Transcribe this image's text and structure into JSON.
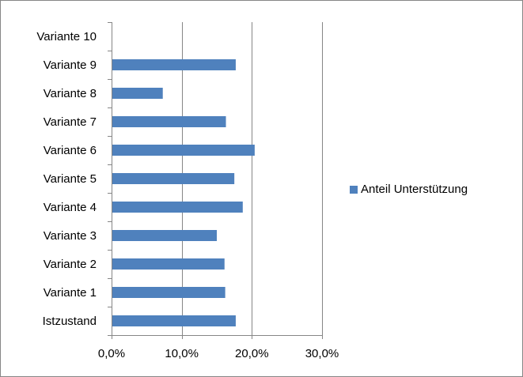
{
  "chart_data": {
    "type": "bar",
    "orientation": "horizontal",
    "categories": [
      "Istzustand",
      "Variante 1",
      "Variante 2",
      "Variante 3",
      "Variante 4",
      "Variante 5",
      "Variante 6",
      "Variante 7",
      "Variante 8",
      "Variante 9",
      "Variante 10"
    ],
    "series": [
      {
        "name": "Anteil Unterstützung",
        "values": [
          17.7,
          16.2,
          16.1,
          15.0,
          18.7,
          17.5,
          20.4,
          16.3,
          7.3,
          17.7,
          0
        ]
      }
    ],
    "x_ticks": [
      "0,0%",
      "10,0%",
      "20,0%",
      "30,0%"
    ],
    "xlim": [
      0,
      30
    ],
    "grid": true,
    "legend_position": "right",
    "colors": {
      "bar": "#4F81BD",
      "grid": "#868686",
      "axis": "#868686",
      "frame": "#868686"
    }
  }
}
